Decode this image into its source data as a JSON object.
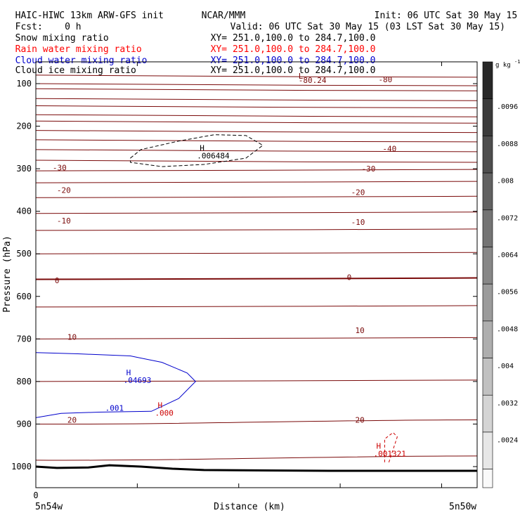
{
  "header": {
    "line1_left": "HAIC-HIWC 13km ARW-GFS init",
    "line1_center": "NCAR/MMM",
    "line1_right": "Init: 06 UTC Sat 30 May 15",
    "line2_left": "Fcst:    0 h",
    "line2_right": "Valid: 06 UTC Sat 30 May 15 (03 LST Sat 30 May 15)",
    "fields": [
      {
        "name": "Snow mixing ratio",
        "xy": "XY= 251.0,100.0 to 284.7,100.0",
        "color": "#000000"
      },
      {
        "name": "Rain water mixing ratio",
        "xy": "XY= 251.0,100.0 to 284.7,100.0",
        "color": "#ff0000"
      },
      {
        "name": "Cloud water mixing ratio",
        "xy": "XY= 251.0,100.0 to 284.7,100.0",
        "color": "#0000cc"
      },
      {
        "name": "Cloud ice mixing ratio",
        "xy": "XY= 251.0,100.0 to 284.7,100.0",
        "color": "#000000"
      }
    ]
  },
  "chart_data": {
    "type": "line",
    "xlabel": "Distance (km)",
    "ylabel": "Pressure (hPa)",
    "x_tick_labels": [
      "0"
    ],
    "x_end_labels": {
      "left": "5n54w",
      "right": "5n50w"
    },
    "y_ticks": [
      100,
      200,
      300,
      400,
      500,
      600,
      700,
      800,
      900,
      1000
    ],
    "ylim": [
      1050,
      70
    ],
    "xlim": [
      0,
      210
    ],
    "colorbar": {
      "unit": "g kg",
      "unit_superscript": "-1",
      "labels": [
        ".0096",
        ".0088",
        ".008",
        ".0072",
        ".0064",
        ".0056",
        ".0048",
        ".004",
        ".0032",
        ".0024"
      ]
    },
    "temperature_contours": {
      "color": "#7a0a0a",
      "zero_color": "#7a0a0a",
      "pressures": [
        80,
        100,
        112,
        135,
        152,
        173,
        188,
        210,
        232,
        255,
        280,
        305,
        333,
        368,
        405,
        445,
        500,
        560,
        625,
        700,
        800,
        900,
        985
      ],
      "labels": [
        {
          "text": "-80",
          "x": 163,
          "p": 90
        },
        {
          "text": "-80.24",
          "x": 125,
          "p": 92
        },
        {
          "text": "-40",
          "x": 165,
          "p": 253
        },
        {
          "text": "-30",
          "x": 8,
          "p": 297
        },
        {
          "text": "-30",
          "x": 155,
          "p": 300
        },
        {
          "text": "-20",
          "x": 10,
          "p": 350
        },
        {
          "text": "-20",
          "x": 150,
          "p": 355
        },
        {
          "text": "-10",
          "x": 10,
          "p": 422
        },
        {
          "text": "-10",
          "x": 150,
          "p": 425
        },
        {
          "text": "0",
          "x": 9,
          "p": 562
        },
        {
          "text": "0",
          "x": 148,
          "p": 555
        },
        {
          "text": "10",
          "x": 15,
          "p": 695
        },
        {
          "text": "10",
          "x": 152,
          "p": 680
        },
        {
          "text": "20",
          "x": 15,
          "p": 890
        },
        {
          "text": "20",
          "x": 152,
          "p": 890
        }
      ],
      "low_label": {
        "text": "L",
        "x": 125,
        "p": 82
      }
    },
    "snow_contour": {
      "color": "#000000",
      "points": [
        [
          45,
          275
        ],
        [
          50,
          255
        ],
        [
          68,
          235
        ],
        [
          85,
          220
        ],
        [
          100,
          222
        ],
        [
          108,
          245
        ],
        [
          100,
          275
        ],
        [
          80,
          290
        ],
        [
          60,
          295
        ],
        [
          45,
          285
        ]
      ],
      "h_label": {
        "text": "H",
        "value": ".006484",
        "x": 78,
        "p": 258
      }
    },
    "cloud_water_contour": {
      "color": "#0000cc",
      "points": [
        [
          0,
          732
        ],
        [
          20,
          735
        ],
        [
          45,
          740
        ],
        [
          60,
          755
        ],
        [
          72,
          780
        ],
        [
          76,
          800
        ],
        [
          68,
          840
        ],
        [
          55,
          870
        ],
        [
          30,
          872
        ],
        [
          12,
          875
        ],
        [
          0,
          885
        ]
      ],
      "h_label": {
        "text": "H",
        "value": ".04693",
        "x": 43,
        "p": 785
      },
      "value_label": {
        "text": ".001",
        "x": 33,
        "p": 862
      }
    },
    "rain_contour": {
      "color": "#cc0000",
      "points": [
        [
          168,
          990
        ],
        [
          170,
          960
        ],
        [
          172,
          930
        ],
        [
          170,
          920
        ],
        [
          166,
          935
        ],
        [
          166,
          990
        ]
      ],
      "h_label": {
        "text": "H",
        "value": ".001321",
        "x": 162,
        "p": 958
      },
      "zero_h_label": {
        "text": "H",
        "value": ".000",
        "x": 58,
        "p": 862
      }
    },
    "terrain": {
      "color": "#000000",
      "points": [
        [
          0,
          1000
        ],
        [
          10,
          1003
        ],
        [
          25,
          1002
        ],
        [
          35,
          997
        ],
        [
          50,
          1000
        ],
        [
          65,
          1005
        ],
        [
          80,
          1008
        ],
        [
          140,
          1010
        ],
        [
          210,
          1010
        ]
      ]
    }
  }
}
